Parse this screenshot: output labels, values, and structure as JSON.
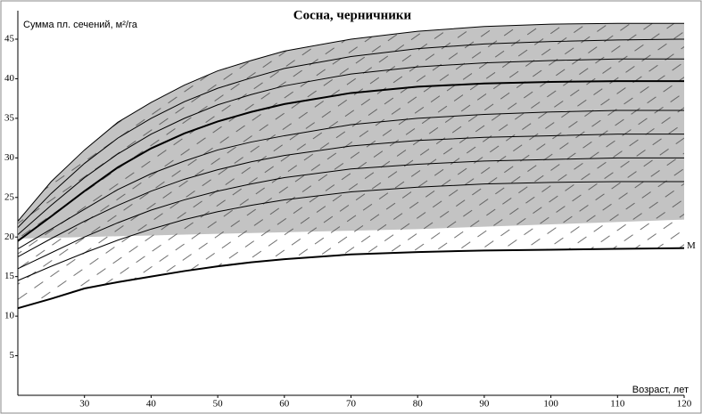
{
  "chart_data": {
    "type": "line",
    "title": "Сосна, черничники",
    "ylabel": "Сумма пл. сечений, м²/га",
    "xlabel": "Возраст, лет",
    "x": [
      20,
      25,
      30,
      35,
      40,
      45,
      50,
      55,
      60,
      70,
      80,
      90,
      100,
      110,
      120
    ],
    "xlim": [
      20,
      120
    ],
    "xticks": [
      30,
      40,
      50,
      60,
      70,
      80,
      90,
      100,
      110,
      120
    ],
    "ylim": [
      0,
      48.6
    ],
    "yticks": [
      5,
      10,
      15,
      20,
      25,
      30,
      35,
      40,
      45
    ],
    "band": {
      "color": "#b8b8b8",
      "upper": [
        22,
        27,
        31,
        34.5,
        37,
        39.2,
        41,
        42.3,
        43.5,
        45,
        46,
        46.6,
        46.9,
        47,
        47
      ],
      "lower": [
        19.8,
        19.9,
        20,
        20.1,
        20.2,
        20.3,
        20.4,
        20.5,
        20.6,
        20.8,
        21,
        21.3,
        21.6,
        21.9,
        22.2
      ]
    },
    "series": [
      {
        "color": "#000000",
        "width": 1,
        "values": [
          22,
          27,
          31,
          34.5,
          37,
          39.2,
          41,
          42.3,
          43.5,
          45,
          46,
          46.6,
          46.9,
          47,
          47
        ]
      },
      {
        "color": "#000000",
        "width": 1,
        "values": [
          21.2,
          25.5,
          29.3,
          32.5,
          35,
          37.1,
          38.8,
          40.1,
          41.3,
          42.8,
          43.8,
          44.4,
          44.7,
          44.9,
          45
        ]
      },
      {
        "color": "#000000",
        "width": 1,
        "values": [
          20.3,
          24,
          27.5,
          30.5,
          33,
          35,
          36.7,
          38,
          39.1,
          40.6,
          41.5,
          42,
          42.3,
          42.5,
          42.5
        ]
      },
      {
        "color": "#000000",
        "width": 2,
        "values": [
          19.5,
          22.6,
          25.8,
          28.8,
          31.2,
          33.1,
          34.6,
          35.8,
          36.8,
          38.2,
          39,
          39.4,
          39.6,
          39.7,
          39.7
        ]
      },
      {
        "color": "#000000",
        "width": 1,
        "values": [
          18.5,
          21,
          23.5,
          26,
          28,
          29.6,
          31,
          32,
          32.8,
          34.2,
          35,
          35.5,
          35.8,
          36,
          36
        ]
      },
      {
        "color": "#000000",
        "width": 1,
        "values": [
          17.5,
          19.8,
          22,
          24,
          25.8,
          27.3,
          28.5,
          29.5,
          30.3,
          31.5,
          32.2,
          32.6,
          32.8,
          33,
          33
        ]
      },
      {
        "color": "#000000",
        "width": 1,
        "values": [
          16,
          18,
          20,
          21.8,
          23.4,
          24.7,
          25.8,
          26.7,
          27.5,
          28.6,
          29.2,
          29.6,
          29.8,
          30,
          30
        ]
      },
      {
        "color": "#000000",
        "width": 1,
        "values": [
          14.5,
          16.3,
          18,
          19.6,
          21,
          22.2,
          23.2,
          24,
          24.7,
          25.7,
          26.3,
          26.7,
          26.9,
          27,
          27
        ]
      },
      {
        "name": "M",
        "color": "#000000",
        "width": 2,
        "values": [
          11,
          12.2,
          13.5,
          14.3,
          15,
          15.7,
          16.3,
          16.8,
          17.2,
          17.8,
          18.1,
          18.3,
          18.4,
          18.5,
          18.6
        ]
      }
    ]
  }
}
